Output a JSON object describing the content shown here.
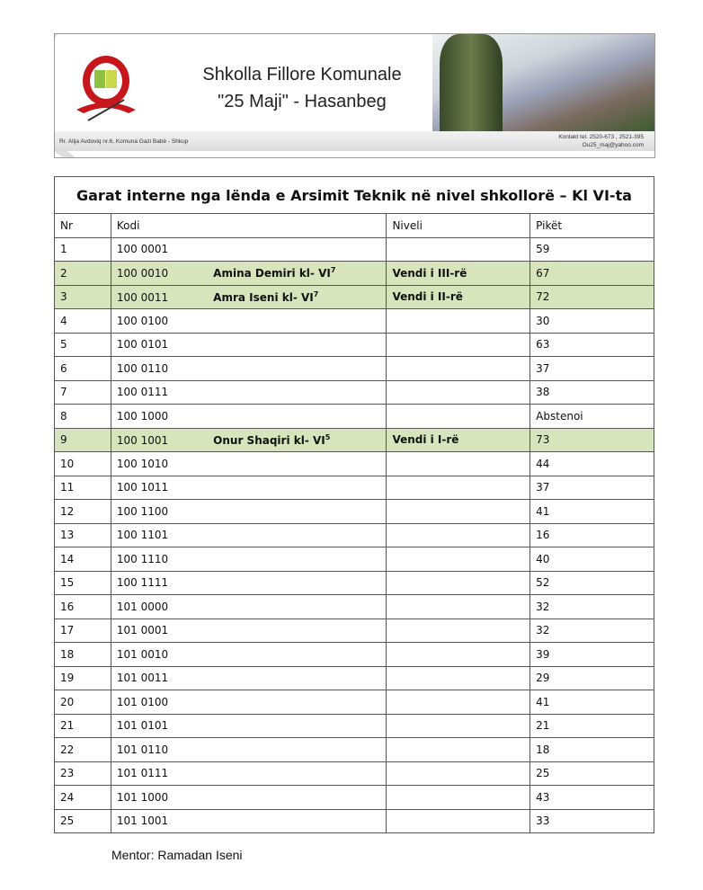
{
  "header": {
    "school_line1": "Shkolla Fillore Komunale",
    "school_line2": "\"25 Maji\" - Hasanbeg",
    "address": "Rr. Alija Avdoviq  nr.6, Komuna Gazi Babë - Shkup",
    "contact": "Kontakt tel. 2520-673 , 2521-395",
    "email": "Ou25_maj@yahoo.com"
  },
  "table": {
    "title": "Garat interne nga lënda e Arsimit Teknik në nivel shkollorë – Kl VI-ta",
    "columns": [
      "Nr",
      "Kodi",
      "Niveli",
      "Pikët"
    ],
    "rows": [
      {
        "nr": "1",
        "kodi": "100 0001",
        "name": "",
        "sup": "",
        "niveli": "",
        "piket": "59"
      },
      {
        "nr": "2",
        "kodi": "100 0010",
        "name": "Amina  Demiri  kl- VI",
        "sup": "7",
        "niveli": "Vendi i III-rë",
        "piket": "67"
      },
      {
        "nr": "3",
        "kodi": "100 0011",
        "name": "Amra  Iseni  kl- VI",
        "sup": "7",
        "niveli": "Vendi i II-rë",
        "piket": "72"
      },
      {
        "nr": "4",
        "kodi": "100 0100",
        "name": "",
        "sup": "",
        "niveli": "",
        "piket": "30"
      },
      {
        "nr": "5",
        "kodi": "100 0101",
        "name": "",
        "sup": "",
        "niveli": "",
        "piket": "63"
      },
      {
        "nr": "6",
        "kodi": "100 0110",
        "name": "",
        "sup": "",
        "niveli": "",
        "piket": "37"
      },
      {
        "nr": "7",
        "kodi": "100 0111",
        "name": "",
        "sup": "",
        "niveli": "",
        "piket": "38"
      },
      {
        "nr": "8",
        "kodi": "100 1000",
        "name": "",
        "sup": "",
        "niveli": "",
        "piket": "Abstenoi"
      },
      {
        "nr": "9",
        "kodi": "100 1001",
        "name": "Onur  Shaqiri  kl- VI",
        "sup": "5",
        "niveli": "Vendi i I-rë",
        "piket": "73"
      },
      {
        "nr": "10",
        "kodi": "100 1010",
        "name": "",
        "sup": "",
        "niveli": "",
        "piket": "44"
      },
      {
        "nr": "11",
        "kodi": "100 1011",
        "name": "",
        "sup": "",
        "niveli": "",
        "piket": "37"
      },
      {
        "nr": "12",
        "kodi": "100 1100",
        "name": "",
        "sup": "",
        "niveli": "",
        "piket": "41"
      },
      {
        "nr": "13",
        "kodi": "100 1101",
        "name": "",
        "sup": "",
        "niveli": "",
        "piket": "16"
      },
      {
        "nr": "14",
        "kodi": "100 1110",
        "name": "",
        "sup": "",
        "niveli": "",
        "piket": "40"
      },
      {
        "nr": "15",
        "kodi": "100 1111",
        "name": "",
        "sup": "",
        "niveli": "",
        "piket": "52"
      },
      {
        "nr": "16",
        "kodi": "101 0000",
        "name": "",
        "sup": "",
        "niveli": "",
        "piket": "32"
      },
      {
        "nr": "17",
        "kodi": "101 0001",
        "name": "",
        "sup": "",
        "niveli": "",
        "piket": "32"
      },
      {
        "nr": "18",
        "kodi": "101 0010",
        "name": "",
        "sup": "",
        "niveli": "",
        "piket": "39"
      },
      {
        "nr": "19",
        "kodi": "101 0011",
        "name": "",
        "sup": "",
        "niveli": "",
        "piket": "29"
      },
      {
        "nr": "20",
        "kodi": "101 0100",
        "name": "",
        "sup": "",
        "niveli": "",
        "piket": "41"
      },
      {
        "nr": "21",
        "kodi": "101 0101",
        "name": "",
        "sup": "",
        "niveli": "",
        "piket": "21"
      },
      {
        "nr": "22",
        "kodi": "101 0110",
        "name": "",
        "sup": "",
        "niveli": "",
        "piket": "18"
      },
      {
        "nr": "23",
        "kodi": "101 0111",
        "name": "",
        "sup": "",
        "niveli": "",
        "piket": "25"
      },
      {
        "nr": "24",
        "kodi": "101 1000",
        "name": "",
        "sup": "",
        "niveli": "",
        "piket": "43"
      },
      {
        "nr": "25",
        "kodi": "101 1001",
        "name": "",
        "sup": "",
        "niveli": "",
        "piket": "33"
      }
    ]
  },
  "highlight_color": "#d8e4bc",
  "footer": {
    "mentor": "Mentor: Ramadan Iseni"
  }
}
